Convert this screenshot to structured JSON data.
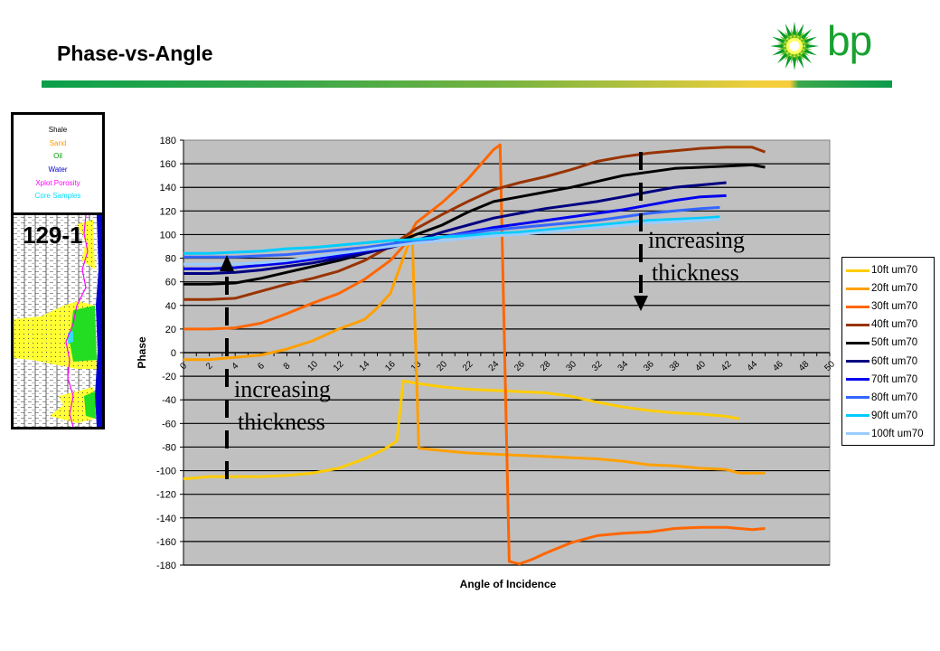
{
  "slide": {
    "title": "Phase-vs-Angle",
    "logo_text": "bp"
  },
  "well_log": {
    "well_name": "129-1",
    "legend": [
      {
        "label": "Shale",
        "color": "#000000"
      },
      {
        "label": "Sand",
        "color": "#ff9900"
      },
      {
        "label": "Oil",
        "color": "#009900"
      },
      {
        "label": "Water",
        "color": "#0000cc"
      },
      {
        "label": "Xplot Porosity",
        "color": "#ff00ff"
      },
      {
        "label": "Core Samples",
        "color": "#00ddff"
      }
    ]
  },
  "annotations": [
    {
      "text": "increasing",
      "line2": "thickness",
      "direction": "up"
    },
    {
      "text": "increasing",
      "line2": "thickness",
      "direction": "down"
    }
  ],
  "chart_data": {
    "type": "line",
    "title": "",
    "xlabel": "Angle of Incidence",
    "ylabel": "Phase",
    "xlim": [
      0,
      50
    ],
    "ylim": [
      -180,
      180
    ],
    "xticks": [
      "0",
      "2",
      "4",
      "6",
      "8",
      "10",
      "12",
      "14",
      "16",
      "18",
      "20",
      "22",
      "24",
      "26",
      "28",
      "30",
      "32",
      "34",
      "36",
      "38",
      "40",
      "42",
      "44",
      "46",
      "48",
      "50"
    ],
    "yticks": [
      180,
      160,
      140,
      120,
      100,
      80,
      60,
      40,
      20,
      0,
      -20,
      -40,
      -60,
      -80,
      -100,
      -120,
      -140,
      -160,
      -180
    ],
    "grid": true,
    "legend_position": "right",
    "series": [
      {
        "name": "10ft um70",
        "color": "#ffcc00",
        "x": [
          0,
          2,
          4,
          6,
          8,
          10,
          12,
          14,
          15.5,
          16.5,
          17,
          18,
          20,
          22,
          24,
          26,
          28,
          30,
          32,
          34,
          36,
          38,
          40,
          42,
          43
        ],
        "y": [
          -107,
          -105,
          -105,
          -105,
          -104,
          -102,
          -98,
          -90,
          -82,
          -75,
          -24,
          -26,
          -29,
          -31,
          -32,
          -33,
          -34,
          -37,
          -42,
          -46,
          -49,
          -51,
          -52,
          -54,
          -56
        ]
      },
      {
        "name": "20ft um70",
        "color": "#ffa000",
        "x": [
          0,
          2,
          4,
          6,
          8,
          10,
          12,
          14,
          15,
          16,
          17,
          17.7,
          18.2,
          20,
          22,
          24,
          26,
          28,
          30,
          32,
          34,
          36,
          38,
          40,
          42,
          43,
          45
        ],
        "y": [
          -6,
          -6,
          -4,
          -2,
          3,
          10,
          20,
          28,
          38,
          50,
          80,
          100,
          -81,
          -83,
          -85,
          -86,
          -87,
          -88,
          -89,
          -90,
          -92,
          -95,
          -96,
          -98,
          -99,
          -102,
          -102
        ]
      },
      {
        "name": "30ft um70",
        "color": "#ff6600",
        "x": [
          0,
          2,
          4,
          6,
          8,
          10,
          12,
          14,
          16,
          17,
          18,
          20,
          22,
          24,
          24.5,
          25.2,
          26,
          27,
          28,
          30,
          32,
          34,
          36,
          38,
          40,
          42,
          43,
          44,
          45
        ],
        "y": [
          20,
          20,
          21,
          25,
          33,
          42,
          50,
          62,
          78,
          90,
          110,
          127,
          147,
          172,
          176,
          -177,
          -179,
          -175,
          -170,
          -161,
          -155,
          -153,
          -152,
          -149,
          -148,
          -148,
          -149,
          -150,
          -149
        ]
      },
      {
        "name": "40ft um70",
        "color": "#993300",
        "x": [
          0,
          2,
          4,
          6,
          8,
          10,
          12,
          14,
          16,
          18,
          20,
          22,
          24,
          26,
          28,
          30,
          32,
          34,
          36,
          38,
          40,
          42,
          44,
          45
        ],
        "y": [
          45,
          45,
          46,
          52,
          58,
          63,
          69,
          78,
          90,
          105,
          117,
          128,
          138,
          144,
          149,
          155,
          162,
          166,
          169,
          171,
          173,
          174,
          174,
          170
        ]
      },
      {
        "name": "50ft um70",
        "color": "#000000",
        "x": [
          0,
          2,
          4,
          6,
          8,
          10,
          12,
          14,
          16,
          18,
          20,
          22,
          24,
          26,
          28,
          30,
          32,
          34,
          36,
          38,
          40,
          42,
          44,
          45
        ],
        "y": [
          58,
          58,
          59,
          63,
          68,
          73,
          78,
          84,
          91,
          100,
          108,
          119,
          128,
          132,
          136,
          140,
          145,
          150,
          153,
          156,
          157,
          158,
          159,
          157
        ]
      },
      {
        "name": "60ft um70",
        "color": "#000080",
        "x": [
          0,
          2,
          4,
          6,
          8,
          10,
          12,
          14,
          16,
          18,
          20,
          22,
          24,
          26,
          28,
          30,
          32,
          34,
          36,
          38,
          40,
          42
        ],
        "y": [
          67,
          67,
          68,
          70,
          73,
          76,
          80,
          84,
          89,
          95,
          102,
          108,
          114,
          118,
          122,
          125,
          128,
          132,
          136,
          140,
          142,
          144
        ]
      },
      {
        "name": "70ft um70",
        "color": "#0000ee",
        "x": [
          0,
          2,
          4,
          6,
          8,
          10,
          12,
          14,
          16,
          18,
          20,
          22,
          24,
          26,
          28,
          30,
          32,
          34,
          36,
          38,
          40,
          42
        ],
        "y": [
          71,
          71,
          72,
          74,
          76,
          79,
          82,
          86,
          90,
          94,
          98,
          102,
          106,
          109,
          112,
          115,
          118,
          121,
          125,
          129,
          132,
          133
        ]
      },
      {
        "name": "80ft um70",
        "color": "#3366ff",
        "x": [
          0,
          2,
          4,
          6,
          8,
          10,
          12,
          14,
          16,
          18,
          20,
          22,
          24,
          26,
          28,
          30,
          32,
          34,
          36,
          38,
          40,
          41.5
        ],
        "y": [
          81,
          81,
          81,
          82,
          83,
          85,
          87,
          89,
          92,
          95,
          98,
          101,
          104,
          106,
          108,
          110,
          112,
          115,
          118,
          120,
          122,
          123
        ]
      },
      {
        "name": "90ft um70",
        "color": "#00ccff",
        "x": [
          0,
          2,
          4,
          6,
          8,
          10,
          12,
          14,
          16,
          18,
          20,
          22,
          24,
          26,
          28,
          30,
          32,
          34,
          36,
          38,
          40,
          41.5
        ],
        "y": [
          84,
          84,
          85,
          86,
          88,
          89,
          91,
          93,
          95,
          96,
          98,
          99,
          101,
          102,
          104,
          106,
          108,
          110,
          112,
          113,
          114,
          115
        ]
      },
      {
        "name": "100ft um70",
        "color": "#99ccff",
        "x": [
          0,
          2,
          4,
          6,
          8,
          10,
          12,
          14,
          16,
          18,
          20,
          22,
          24,
          26,
          28,
          30,
          32,
          34,
          36,
          38,
          40,
          41.5
        ],
        "y": [
          75,
          75,
          75,
          76,
          78,
          81,
          84,
          87,
          90,
          93,
          95,
          97,
          99,
          100,
          102,
          104,
          106,
          108,
          110,
          111,
          112,
          113
        ]
      }
    ]
  }
}
